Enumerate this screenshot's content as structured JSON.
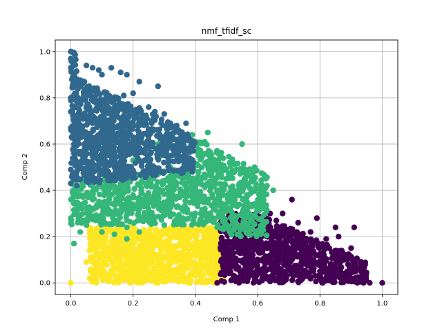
{
  "chart_data": {
    "type": "scatter",
    "title": "nmf_tfidf_sc",
    "xlabel": "Comp  1",
    "ylabel": "Comp  2",
    "xlim": [
      -0.05,
      1.05
    ],
    "ylim": [
      -0.05,
      1.05
    ],
    "xticks": [
      0.0,
      0.2,
      0.4,
      0.6,
      0.8,
      1.0
    ],
    "yticks": [
      0.0,
      0.2,
      0.4,
      0.6,
      0.8,
      1.0
    ],
    "xtick_labels": [
      "0.0",
      "0.2",
      "0.4",
      "0.6",
      "0.8",
      "1.0"
    ],
    "ytick_labels": [
      "0.0",
      "0.2",
      "0.4",
      "0.6",
      "0.8",
      "1.0"
    ],
    "grid": true,
    "legend": "none",
    "clusters": [
      {
        "color": "#31688e",
        "region": "x 0.00–0.40, y 0.42–1.00 (upper-left wedge)",
        "points": [
          [
            0.0,
            1.0
          ],
          [
            0.0,
            0.97
          ],
          [
            0.0,
            0.93
          ],
          [
            0.01,
            0.9
          ],
          [
            0.02,
            0.88
          ],
          [
            0.05,
            0.94
          ],
          [
            0.07,
            0.93
          ],
          [
            0.09,
            0.92
          ],
          [
            0.1,
            0.9
          ],
          [
            0.13,
            0.93
          ],
          [
            0.16,
            0.91
          ],
          [
            0.18,
            0.9
          ],
          [
            0.22,
            0.87
          ],
          [
            0.28,
            0.85
          ],
          [
            0.03,
            0.85
          ],
          [
            0.05,
            0.83
          ],
          [
            0.08,
            0.84
          ],
          [
            0.11,
            0.82
          ],
          [
            0.14,
            0.8
          ],
          [
            0.17,
            0.81
          ],
          [
            0.2,
            0.82
          ],
          [
            0.02,
            0.78
          ],
          [
            0.06,
            0.76
          ],
          [
            0.09,
            0.78
          ],
          [
            0.12,
            0.76
          ],
          [
            0.15,
            0.74
          ],
          [
            0.18,
            0.75
          ],
          [
            0.21,
            0.74
          ],
          [
            0.24,
            0.72
          ],
          [
            0.25,
            0.76
          ],
          [
            0.27,
            0.74
          ],
          [
            0.3,
            0.73
          ],
          [
            0.01,
            0.7
          ],
          [
            0.04,
            0.72
          ],
          [
            0.07,
            0.69
          ],
          [
            0.1,
            0.7
          ],
          [
            0.13,
            0.68
          ],
          [
            0.16,
            0.67
          ],
          [
            0.19,
            0.69
          ],
          [
            0.22,
            0.68
          ],
          [
            0.26,
            0.7
          ],
          [
            0.29,
            0.69
          ],
          [
            0.32,
            0.69
          ],
          [
            0.34,
            0.68
          ],
          [
            0.37,
            0.69
          ],
          [
            0.02,
            0.63
          ],
          [
            0.05,
            0.64
          ],
          [
            0.08,
            0.62
          ],
          [
            0.11,
            0.61
          ],
          [
            0.14,
            0.63
          ],
          [
            0.17,
            0.62
          ],
          [
            0.2,
            0.63
          ],
          [
            0.23,
            0.64
          ],
          [
            0.28,
            0.66
          ],
          [
            0.31,
            0.64
          ],
          [
            0.01,
            0.56
          ],
          [
            0.04,
            0.57
          ],
          [
            0.07,
            0.55
          ],
          [
            0.1,
            0.56
          ],
          [
            0.13,
            0.57
          ],
          [
            0.16,
            0.55
          ],
          [
            0.18,
            0.6
          ],
          [
            0.0,
            0.49
          ],
          [
            0.03,
            0.5
          ],
          [
            0.06,
            0.48
          ],
          [
            0.09,
            0.5
          ],
          [
            0.12,
            0.51
          ],
          [
            0.0,
            0.43
          ],
          [
            0.02,
            0.42
          ],
          [
            0.05,
            0.44
          ],
          [
            0.08,
            0.45
          ],
          [
            0.01,
            0.6
          ],
          [
            0.0,
            0.8
          ],
          [
            0.0,
            0.74
          ],
          [
            0.0,
            0.67
          ]
        ]
      },
      {
        "color": "#35b779",
        "region": "x 0.00–0.66, y 0.17–0.66 (middle band)",
        "points": [
          [
            0.0,
            0.28
          ],
          [
            0.01,
            0.35
          ],
          [
            0.02,
            0.39
          ],
          [
            0.01,
            0.17
          ],
          [
            0.03,
            0.22
          ],
          [
            0.05,
            0.25
          ],
          [
            0.06,
            0.3
          ],
          [
            0.08,
            0.27
          ],
          [
            0.07,
            0.36
          ],
          [
            0.1,
            0.33
          ],
          [
            0.1,
            0.22
          ],
          [
            0.12,
            0.3
          ],
          [
            0.13,
            0.38
          ],
          [
            0.14,
            0.21
          ],
          [
            0.15,
            0.27
          ],
          [
            0.16,
            0.34
          ],
          [
            0.17,
            0.42
          ],
          [
            0.18,
            0.24
          ],
          [
            0.19,
            0.31
          ],
          [
            0.2,
            0.38
          ],
          [
            0.21,
            0.46
          ],
          [
            0.22,
            0.28
          ],
          [
            0.23,
            0.35
          ],
          [
            0.24,
            0.43
          ],
          [
            0.25,
            0.52
          ],
          [
            0.26,
            0.3
          ],
          [
            0.27,
            0.39
          ],
          [
            0.28,
            0.47
          ],
          [
            0.29,
            0.55
          ],
          [
            0.3,
            0.33
          ],
          [
            0.31,
            0.41
          ],
          [
            0.32,
            0.5
          ],
          [
            0.33,
            0.58
          ],
          [
            0.34,
            0.62
          ],
          [
            0.35,
            0.37
          ],
          [
            0.36,
            0.45
          ],
          [
            0.37,
            0.53
          ],
          [
            0.38,
            0.62
          ],
          [
            0.39,
            0.64
          ],
          [
            0.4,
            0.4
          ],
          [
            0.41,
            0.48
          ],
          [
            0.42,
            0.56
          ],
          [
            0.43,
            0.61
          ],
          [
            0.44,
            0.35
          ],
          [
            0.45,
            0.43
          ],
          [
            0.46,
            0.5
          ],
          [
            0.47,
            0.57
          ],
          [
            0.44,
            0.65
          ],
          [
            0.48,
            0.29
          ],
          [
            0.49,
            0.38
          ],
          [
            0.5,
            0.45
          ],
          [
            0.51,
            0.52
          ],
          [
            0.52,
            0.27
          ],
          [
            0.53,
            0.34
          ],
          [
            0.54,
            0.42
          ],
          [
            0.55,
            0.6
          ],
          [
            0.56,
            0.31
          ],
          [
            0.57,
            0.38
          ],
          [
            0.58,
            0.44
          ],
          [
            0.59,
            0.5
          ],
          [
            0.6,
            0.33
          ],
          [
            0.62,
            0.4
          ],
          [
            0.63,
            0.42
          ],
          [
            0.65,
            0.4
          ],
          [
            0.15,
            0.5
          ],
          [
            0.2,
            0.53
          ],
          [
            0.24,
            0.57
          ],
          [
            0.28,
            0.6
          ],
          [
            0.32,
            0.63
          ],
          [
            0.09,
            0.42
          ],
          [
            0.11,
            0.46
          ],
          [
            0.05,
            0.38
          ],
          [
            0.36,
            0.28
          ],
          [
            0.4,
            0.3
          ],
          [
            0.44,
            0.27
          ],
          [
            0.47,
            0.24
          ],
          [
            0.3,
            0.25
          ],
          [
            0.22,
            0.22
          ],
          [
            0.18,
            0.19
          ]
        ]
      },
      {
        "color": "#fde725",
        "region": "x 0.00–0.50, y 0.00–0.25 (lower-left block)",
        "points": [
          [
            0.0,
            0.0
          ],
          [
            0.05,
            0.09
          ],
          [
            0.06,
            0.14
          ],
          [
            0.08,
            0.15
          ],
          [
            0.1,
            0.12
          ],
          [
            0.12,
            0.02
          ],
          [
            0.13,
            0.18
          ],
          [
            0.15,
            0.1
          ],
          [
            0.16,
            0.04
          ],
          [
            0.18,
            0.14
          ],
          [
            0.2,
            0.07
          ],
          [
            0.21,
            0.19
          ],
          [
            0.22,
            0.01
          ],
          [
            0.24,
            0.11
          ],
          [
            0.26,
            0.05
          ],
          [
            0.27,
            0.16
          ],
          [
            0.29,
            0.09
          ],
          [
            0.3,
            0.21
          ],
          [
            0.31,
            0.02
          ],
          [
            0.33,
            0.13
          ],
          [
            0.34,
            0.06
          ],
          [
            0.36,
            0.18
          ],
          [
            0.37,
            0.1
          ],
          [
            0.39,
            0.22
          ],
          [
            0.4,
            0.03
          ],
          [
            0.41,
            0.15
          ],
          [
            0.43,
            0.08
          ],
          [
            0.44,
            0.2
          ],
          [
            0.45,
            0.12
          ],
          [
            0.46,
            0.04
          ],
          [
            0.47,
            0.17
          ],
          [
            0.48,
            0.09
          ],
          [
            0.49,
            0.02
          ],
          [
            0.1,
            0.05
          ],
          [
            0.14,
            0.17
          ],
          [
            0.25,
            0.22
          ],
          [
            0.35,
            0.24
          ],
          [
            0.42,
            0.24
          ],
          [
            0.08,
            0.04
          ],
          [
            0.19,
            0.0
          ],
          [
            0.28,
            0.0
          ],
          [
            0.38,
            0.0
          ],
          [
            0.46,
            0.0
          ]
        ]
      },
      {
        "color": "#440154",
        "region": "x 0.47–1.00, y 0.00–0.37 (lower-right wedge)",
        "points": [
          [
            0.47,
            0.0
          ],
          [
            0.5,
            0.06
          ],
          [
            0.52,
            0.15
          ],
          [
            0.53,
            0.22
          ],
          [
            0.55,
            0.03
          ],
          [
            0.56,
            0.1
          ],
          [
            0.57,
            0.25
          ],
          [
            0.58,
            0.18
          ],
          [
            0.6,
            0.06
          ],
          [
            0.61,
            0.13
          ],
          [
            0.62,
            0.28
          ],
          [
            0.63,
            0.2
          ],
          [
            0.64,
            0.02
          ],
          [
            0.65,
            0.09
          ],
          [
            0.66,
            0.23
          ],
          [
            0.67,
            0.15
          ],
          [
            0.68,
            0.3
          ],
          [
            0.69,
            0.05
          ],
          [
            0.7,
            0.11
          ],
          [
            0.71,
            0.36
          ],
          [
            0.72,
            0.18
          ],
          [
            0.73,
            0.26
          ],
          [
            0.74,
            0.08
          ],
          [
            0.75,
            0.14
          ],
          [
            0.76,
            0.03
          ],
          [
            0.77,
            0.22
          ],
          [
            0.78,
            0.1
          ],
          [
            0.79,
            0.28
          ],
          [
            0.8,
            0.05
          ],
          [
            0.81,
            0.16
          ],
          [
            0.82,
            0.19
          ],
          [
            0.83,
            0.01
          ],
          [
            0.84,
            0.11
          ],
          [
            0.85,
            0.24
          ],
          [
            0.86,
            0.06
          ],
          [
            0.87,
            0.14
          ],
          [
            0.88,
            0.02
          ],
          [
            0.89,
            0.08
          ],
          [
            0.9,
            0.01
          ],
          [
            0.91,
            0.24
          ],
          [
            0.92,
            0.0
          ],
          [
            0.94,
            0.0
          ],
          [
            0.96,
            0.0
          ],
          [
            1.0,
            0.0
          ],
          [
            0.9,
            0.15
          ],
          [
            0.86,
            0.2
          ],
          [
            0.55,
            0.3
          ],
          [
            0.6,
            0.32
          ],
          [
            0.64,
            0.3
          ],
          [
            0.58,
            0.28
          ],
          [
            0.66,
            0.27
          ],
          [
            0.7,
            0.23
          ]
        ]
      }
    ]
  }
}
